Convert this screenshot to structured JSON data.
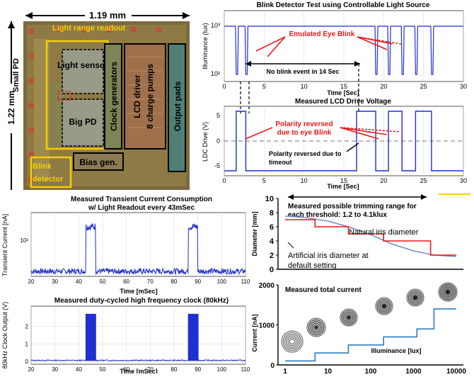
{
  "die": {
    "width_label": "1.19 mm",
    "height_label": "1.22 mm",
    "blocks": {
      "light_range_readout": "Light range readout",
      "light_sensor": "Light sensor",
      "small_pd": "Small PD",
      "big_pd": "Big PD",
      "clock_generators": "Clock generators",
      "lcd_driver": "LCD driver 8 charge pumps",
      "output_pads": "Output pads",
      "bias_gen": "Bias gen.",
      "blink_detector": "Blink detector"
    }
  },
  "colors": {
    "trace": "#1f2fd0",
    "annotation_red": "#e8191c",
    "callout_yellow": "#f5d000",
    "iris_blue": "#6f90c8",
    "current_blue": "#2e7fc0"
  },
  "blink_chart": {
    "title": "Blink Detector Test using Controllable Light Source",
    "ylabel": "Illuminance (lux)",
    "xlabel": "Time [Sec]",
    "annotation_blink": "Emulated Eye Blink",
    "annotation_noblink": "No blink event in 14 Sec",
    "xticks": [
      "0",
      "5",
      "10",
      "15",
      "20",
      "25",
      "30"
    ],
    "yticks": [
      "10²",
      "10³"
    ]
  },
  "lcd_chart": {
    "title": "Measured LCD Drive Voltage",
    "ylabel": "LDC Drive (V)",
    "xlabel": "Time [Sec]",
    "annotation_blink": "Polarity reversed due to  eye Blink",
    "annotation_timeout": "Polarity reversed due to timeout",
    "xticks": [
      "0",
      "5",
      "10",
      "15",
      "20",
      "25",
      "30"
    ],
    "yticks": [
      "5",
      "0",
      "-5"
    ]
  },
  "transient_chart": {
    "title": "Measured Transient Current Consumption w/ Light Readout every 43mSec",
    "ylabel": "Transient Current [nA]",
    "xlabel": "Time [mSec]",
    "xticks": [
      "20",
      "30",
      "40",
      "50",
      "60",
      "70",
      "80",
      "90",
      "100",
      "110"
    ],
    "yticks": [
      "10²"
    ]
  },
  "clock_chart": {
    "title": "Measured duty-cycled high frequency clock (80kHz)",
    "ylabel": "80kHz Clock Output (V)",
    "xlabel": "Time [mSec]",
    "xticks": [
      "20",
      "30",
      "40",
      "50",
      "60",
      "70",
      "80",
      "90",
      "100",
      "110"
    ],
    "yticks": [
      "2",
      "1",
      "0"
    ]
  },
  "iris_chart": {
    "ylabel": "Diameter [mm]",
    "yticks": [
      "10",
      "8",
      "6",
      "4",
      "2",
      "0"
    ],
    "annotation_trim": "Measured possible trimming range for each threshold: 1.2 to 4.1klux",
    "annotation_natural": "Natural iris diameter",
    "annotation_artificial": "Artificial iris diameter at default setting"
  },
  "current_chart": {
    "ylabel": "Current [nA]",
    "xlabel": "Illuminance [lux]",
    "title": "Measured total current",
    "yticks": [
      "2000",
      "1000",
      "0"
    ],
    "xticks": [
      "1",
      "10",
      "100",
      "1000",
      "10000"
    ]
  },
  "chart_data": [
    {
      "type": "line",
      "title": "Blink Detector Test using Controllable Light Source",
      "xlabel": "Time [Sec]",
      "ylabel": "Illuminance (lux)",
      "xlim": [
        0,
        30
      ],
      "ylim": [
        100,
        1000
      ],
      "yscale": "log",
      "baseline": 1000,
      "dips": [
        1.5,
        2.7,
        19.0,
        20.6,
        22.3,
        24.0,
        26.0
      ],
      "dip_value": 100
    },
    {
      "type": "line",
      "title": "Measured LCD Drive Voltage",
      "xlabel": "Time [Sec]",
      "ylabel": "LDC Drive (V)",
      "xlim": [
        0,
        30
      ],
      "ylim": [
        -7,
        7
      ],
      "x": [
        0,
        1.5,
        1.5,
        2.7,
        2.7,
        16.6,
        16.6,
        19.0,
        19.0,
        20.6,
        20.6,
        22.3,
        22.3,
        24.0,
        24.0,
        26.0,
        26.0,
        30
      ],
      "y": [
        -6,
        -6,
        6,
        6,
        -6,
        -6,
        6,
        6,
        -6,
        -6,
        6,
        6,
        -6,
        -6,
        6,
        6,
        -6,
        -6
      ]
    },
    {
      "type": "line",
      "title": "Measured Transient Current Consumption w/ Light Readout every 43mSec",
      "xlabel": "Time [mSec]",
      "ylabel": "Transient Current [nA]",
      "xlim": [
        20,
        110
      ],
      "pulses": [
        [
          43,
          47
        ],
        [
          86,
          90
        ]
      ],
      "baseline_level": 0.08,
      "pulse_level": 0.78
    },
    {
      "type": "line",
      "title": "Measured duty-cycled high frequency clock (80kHz)",
      "xlabel": "Time [mSec]",
      "ylabel": "80kHz Clock Output (V)",
      "xlim": [
        20,
        110
      ],
      "ylim": [
        0,
        3
      ],
      "bursts": [
        [
          43,
          47
        ],
        [
          86,
          90
        ]
      ],
      "burst_amplitude": 2.7
    },
    {
      "type": "line",
      "ylabel": "Diameter [mm]",
      "ylim": [
        0,
        10
      ],
      "xscale": "log",
      "xlim": [
        1,
        10000
      ],
      "series": [
        {
          "name": "Natural iris diameter",
          "x": [
            1,
            3,
            10,
            30,
            100,
            300,
            1000,
            3000,
            10000
          ],
          "y": [
            7.5,
            7.3,
            6.8,
            6.0,
            4.9,
            3.6,
            2.6,
            2.0,
            1.8
          ]
        },
        {
          "name": "Artificial iris diameter at default setting",
          "x": [
            1,
            5,
            5,
            30,
            30,
            200,
            200,
            2500,
            2500,
            10000
          ],
          "y": [
            7,
            7,
            6,
            6,
            5,
            5,
            4,
            4,
            2,
            2
          ]
        }
      ]
    },
    {
      "type": "line",
      "title": "Measured total current",
      "xlabel": "Illuminance [lux]",
      "ylabel": "Current [nA]",
      "xscale": "log",
      "xlim": [
        1,
        10000
      ],
      "ylim": [
        0,
        2000
      ],
      "x": [
        1,
        5,
        5,
        30,
        30,
        200,
        200,
        1200,
        1200,
        3000,
        3000,
        10000
      ],
      "y": [
        100,
        100,
        300,
        300,
        500,
        500,
        700,
        700,
        900,
        900,
        1400,
        1400
      ]
    }
  ]
}
